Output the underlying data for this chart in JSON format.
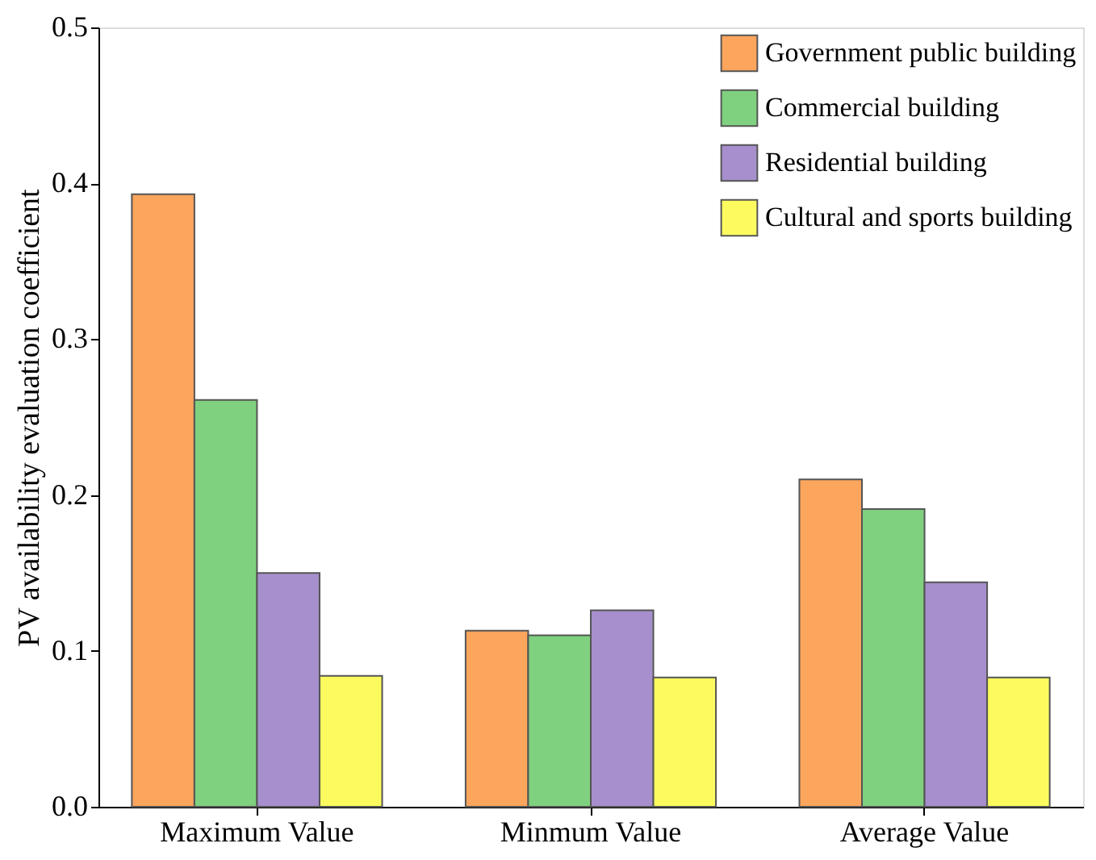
{
  "chart_data": {
    "type": "bar",
    "ylabel": "PV availability evaluation coefficient",
    "categories": [
      "Maximum Value",
      "Minmum  Value",
      "Average Value"
    ],
    "series": [
      {
        "name": "Government public building",
        "color": "#fca55d",
        "values": [
          0.393,
          0.113,
          0.21
        ]
      },
      {
        "name": "Commercial building",
        "color": "#7fd17f",
        "values": [
          0.261,
          0.11,
          0.191
        ]
      },
      {
        "name": "Residential building",
        "color": "#a68fcc",
        "values": [
          0.15,
          0.126,
          0.144
        ]
      },
      {
        "name": "Cultural and sports building",
        "color": "#fbfb5f",
        "values": [
          0.084,
          0.083,
          0.083
        ]
      }
    ],
    "ylim": [
      0,
      0.5
    ],
    "yticks": [
      {
        "value": 0,
        "label": "0.0"
      },
      0.1,
      0.2,
      0.3,
      0.4,
      0.5
    ],
    "grid": false,
    "legend": "top right"
  }
}
